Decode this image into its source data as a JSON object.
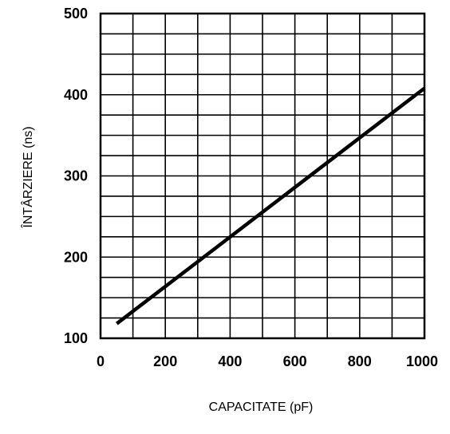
{
  "chart_data": {
    "type": "line",
    "title": "",
    "xlabel": "CAPACITATE (pF)",
    "ylabel": "ÎNTÂRZIERE (ns)",
    "xlim": [
      0,
      1000
    ],
    "ylim": [
      100,
      500
    ],
    "x_ticks": [
      0,
      200,
      400,
      600,
      800,
      1000
    ],
    "y_ticks": [
      100,
      200,
      300,
      400,
      500
    ],
    "x_tick_labels": [
      "0",
      "200",
      "400",
      "600",
      "800",
      "1000"
    ],
    "y_tick_labels": [
      "100",
      "200",
      "300",
      "400",
      "500"
    ],
    "grid": true,
    "grid_x_step": 100,
    "grid_y_step": 25,
    "series": [
      {
        "x": [
          50,
          1000
        ],
        "y": [
          118,
          408
        ]
      }
    ],
    "colors": {
      "line": "#000000",
      "grid": "#000000",
      "background": "#ffffff"
    }
  }
}
